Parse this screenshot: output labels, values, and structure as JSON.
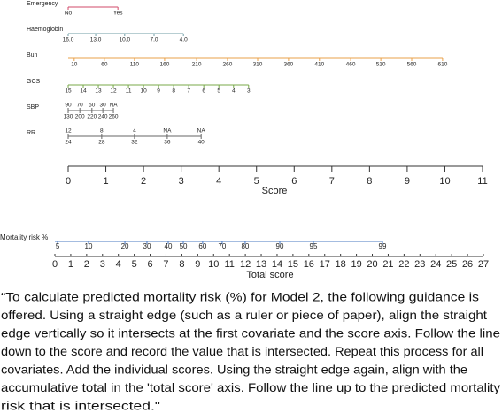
{
  "covariates": [
    {
      "name": "Emergency",
      "ticks": [
        {
          "label": "No",
          "score": 0
        },
        {
          "label": "Yes",
          "score": 1.32
        }
      ]
    },
    {
      "name": "Haemoglobin",
      "ticks": [
        {
          "label": "16.0",
          "score": 0
        },
        {
          "label": "13.0",
          "score": 0.73
        },
        {
          "label": "10.0",
          "score": 1.5
        },
        {
          "label": "7.0",
          "score": 2.28
        },
        {
          "label": "4.0",
          "score": 3.06
        }
      ]
    },
    {
      "name": "Bun",
      "ticks": [
        {
          "label": "10",
          "score": 0.16
        },
        {
          "label": "60",
          "score": 0.96
        },
        {
          "label": "110",
          "score": 1.76
        },
        {
          "label": "160",
          "score": 2.56
        },
        {
          "label": "210",
          "score": 3.41
        },
        {
          "label": "260",
          "score": 4.23
        },
        {
          "label": "310",
          "score": 5.03
        },
        {
          "label": "360",
          "score": 5.85
        },
        {
          "label": "410",
          "score": 6.67
        },
        {
          "label": "460",
          "score": 7.5
        },
        {
          "label": "510",
          "score": 8.3
        },
        {
          "label": "560",
          "score": 9.12
        },
        {
          "label": "610",
          "score": 9.94
        }
      ]
    },
    {
      "name": "GCS",
      "ticks": [
        {
          "label": "15",
          "score": 0
        },
        {
          "label": "14",
          "score": 0.4
        },
        {
          "label": "13",
          "score": 0.8
        },
        {
          "label": "12",
          "score": 1.2
        },
        {
          "label": "11",
          "score": 1.6
        },
        {
          "label": "10",
          "score": 2.0
        },
        {
          "label": "9",
          "score": 2.4
        },
        {
          "label": "8",
          "score": 2.8
        },
        {
          "label": "7",
          "score": 3.2
        },
        {
          "label": "6",
          "score": 3.6
        },
        {
          "label": "5",
          "score": 4.0
        },
        {
          "label": "4",
          "score": 4.39
        },
        {
          "label": "3",
          "score": 4.79
        }
      ]
    },
    {
      "name": "SBP",
      "ticks_upper": [
        {
          "label": "90",
          "score": 0
        },
        {
          "label": "70",
          "score": 0.31
        },
        {
          "label": "50",
          "score": 0.63
        },
        {
          "label": "30",
          "score": 0.92
        },
        {
          "label": "NA",
          "score": 1.2
        }
      ],
      "ticks": [
        {
          "label": "130",
          "score": 0
        },
        {
          "label": "200",
          "score": 0.31
        },
        {
          "label": "220",
          "score": 0.63
        },
        {
          "label": "240",
          "score": 0.92
        },
        {
          "label": "260",
          "score": 1.2
        }
      ]
    },
    {
      "name": "RR",
      "ticks_upper": [
        {
          "label": "12",
          "score": 0
        },
        {
          "label": "8",
          "score": 0.89
        },
        {
          "label": "4",
          "score": 1.76
        },
        {
          "label": "NA",
          "score": 2.63
        },
        {
          "label": "NA",
          "score": 3.53
        }
      ],
      "ticks": [
        {
          "label": "24",
          "score": 0
        },
        {
          "label": "28",
          "score": 0.89
        },
        {
          "label": "32",
          "score": 1.76
        },
        {
          "label": "36",
          "score": 2.63
        },
        {
          "label": "40",
          "score": 3.53
        }
      ]
    }
  ],
  "score_axis": {
    "label": "Score",
    "ticks": [
      0,
      1,
      2,
      3,
      4,
      5,
      6,
      7,
      8,
      9,
      10,
      11
    ]
  },
  "mortality_axis": {
    "label": "Mortality risk %",
    "ticks": [
      {
        "value": 5,
        "total_score": 0.17
      },
      {
        "value": 10,
        "total_score": 2.12
      },
      {
        "value": 20,
        "total_score": 4.41
      },
      {
        "value": 30,
        "total_score": 5.8
      },
      {
        "value": 40,
        "total_score": 7.14
      },
      {
        "value": 50,
        "total_score": 8.09
      },
      {
        "value": 60,
        "total_score": 9.31
      },
      {
        "value": 70,
        "total_score": 10.54
      },
      {
        "value": 80,
        "total_score": 11.99
      },
      {
        "value": 90,
        "total_score": 14.17
      },
      {
        "value": 95,
        "total_score": 16.29
      },
      {
        "value": 99,
        "total_score": 20.64
      }
    ]
  },
  "total_axis": {
    "label": "Total score",
    "ticks": [
      0,
      1,
      2,
      3,
      4,
      5,
      6,
      7,
      8,
      9,
      10,
      11,
      12,
      13,
      14,
      15,
      16,
      17,
      18,
      19,
      20,
      21,
      22,
      23,
      24,
      25,
      26,
      27
    ]
  },
  "caption": {
    "lines": [
      "“To calculate predicted mortality risk (%) for Model 2, the following guidance is",
      "offered. Using a straight edge (such as a ruler or piece of paper), align the straight",
      "edge vertically so it intersects at the first covariate and the score axis. Follow the line",
      "down to the score and record the value that is intersected. Repeat this process for all",
      "covariates. Add the individual scores. Using the straight edge again, align with the",
      "accumulative total in the 'total score' axis. Follow the line up to the predicted mortality",
      "risk that is intersected.\""
    ]
  }
}
